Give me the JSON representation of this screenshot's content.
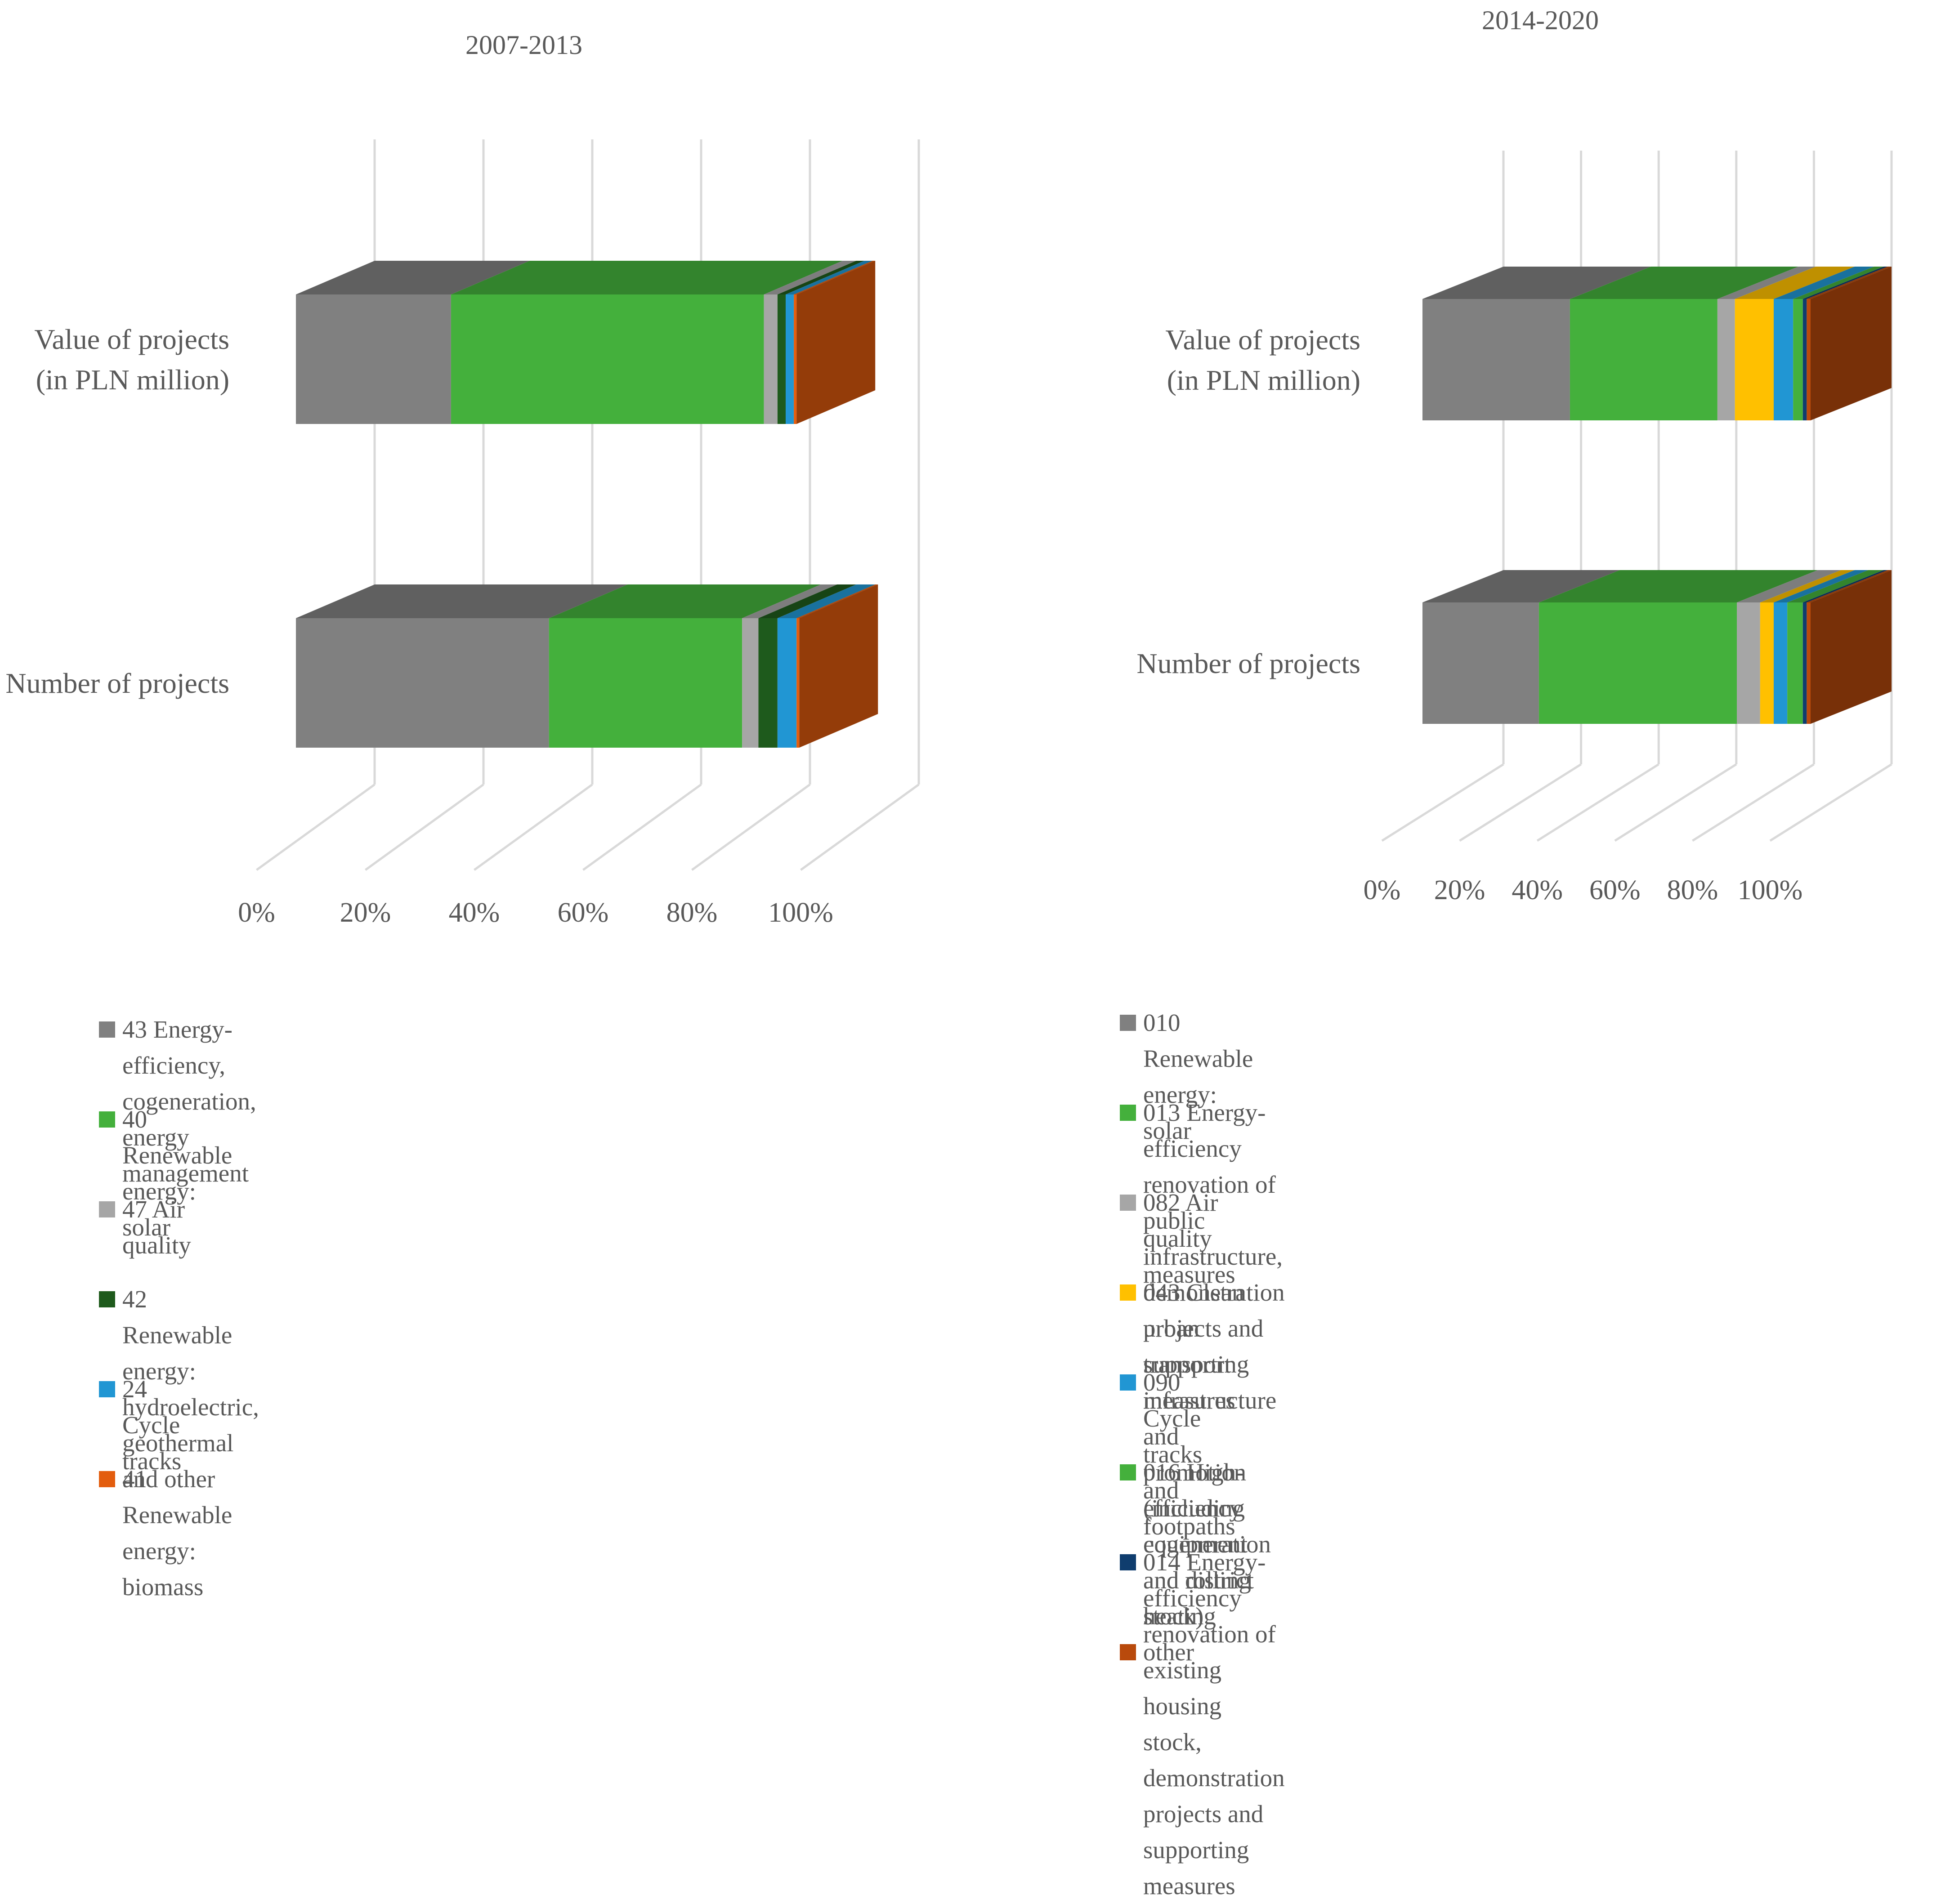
{
  "chart_data": [
    {
      "type": "stacked-bar-3d",
      "title": "2007-2013",
      "orientation": "horizontal",
      "categories": [
        "Value of projects\n(in PLN million)",
        "Number of projects"
      ],
      "xlim": [
        0,
        100
      ],
      "xticks": [
        "0%",
        "20%",
        "40%",
        "60%",
        "80%",
        "100%"
      ],
      "series": [
        {
          "name": "43 Energy-efficiency, cogeneration, energy management",
          "color": "#808080",
          "values": [
            28.5,
            46.5
          ]
        },
        {
          "name": "40 Renewable energy: solar",
          "color": "#44b03c",
          "values": [
            57.5,
            35.5
          ]
        },
        {
          "name": "47 Air quality",
          "color": "#a6a6a6",
          "values": [
            2.5,
            3.0
          ]
        },
        {
          "name": "42 Renewable energy: hydroelectric, geothermal and other",
          "color": "#1e5a1c",
          "values": [
            1.5,
            3.5
          ]
        },
        {
          "name": "24 Cycle tracks",
          "color": "#2196d3",
          "values": [
            1.5,
            3.5
          ]
        },
        {
          "name": "41 Renewable energy: biomass",
          "color": "#e35d0e",
          "values": [
            0.5,
            0.5
          ]
        }
      ],
      "legend": "bottom"
    },
    {
      "type": "stacked-bar-3d",
      "title": "2014-2020",
      "orientation": "horizontal",
      "categories": [
        "Value of projects\n(in PLN million)",
        "Number of projects"
      ],
      "xlim": [
        0,
        100
      ],
      "xticks": [
        "0%",
        "20%",
        "40%",
        "60%",
        "80%",
        "100%"
      ],
      "series": [
        {
          "name": "010 Renewable energy: solar",
          "color": "#808080",
          "values": [
            38.0,
            30.0
          ]
        },
        {
          "name": "013 Energy-efficiency renovation of public infrastructure,\ndemonstration projects and supporting measures",
          "color": "#44b03c",
          "values": [
            38.0,
            51.0
          ]
        },
        {
          "name": "082 Air quality measures",
          "color": "#a6a6a6",
          "values": [
            4.5,
            6.0
          ]
        },
        {
          "name": "043 Clean urban transport infrastructure and promotion (including\nequipment and rolling stock)",
          "color": "#ffc000",
          "values": [
            10.0,
            3.5
          ]
        },
        {
          "name": "090 Cycle tracks and footpaths",
          "color": "#2196d3",
          "values": [
            5.0,
            3.5
          ]
        },
        {
          "name": "016 High-efficiency cogeneration and district heating",
          "color": "#44b03c",
          "values": [
            2.5,
            4.0
          ]
        },
        {
          "name": "014 Energy-efficiency renovation of existing housing stock,\ndemonstration projects and supporting measures",
          "color": "#0f3d6e",
          "values": [
            1.0,
            1.0
          ]
        },
        {
          "name": "other",
          "color": "#b94a0c",
          "values": [
            1.0,
            1.0
          ]
        }
      ],
      "legend": "bottom"
    }
  ]
}
